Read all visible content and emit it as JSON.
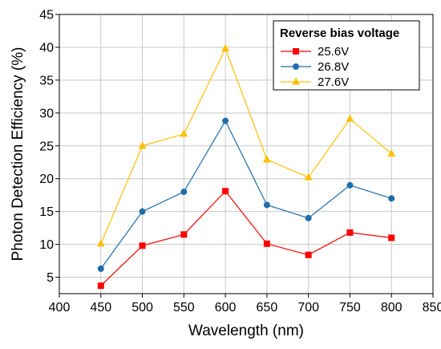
{
  "chart_data": {
    "type": "line",
    "xlabel": "Wavelength (nm)",
    "ylabel": "Photon Detection Efficiency (%)",
    "xlim": [
      400,
      850
    ],
    "ylim": [
      2.5,
      45
    ],
    "x_ticks": [
      400,
      450,
      500,
      550,
      600,
      650,
      700,
      750,
      800,
      850
    ],
    "y_ticks": [
      5,
      10,
      15,
      20,
      25,
      30,
      35,
      40,
      45
    ],
    "grid": true,
    "legend": {
      "title": "Reverse bias voltage",
      "placement": "top-right"
    },
    "x": [
      450,
      500,
      550,
      600,
      650,
      700,
      750,
      800
    ],
    "series": [
      {
        "name": "25.6V",
        "color": "#ff0000",
        "marker": "square",
        "values": [
          3.7,
          9.8,
          11.5,
          18.1,
          10.1,
          8.4,
          11.8,
          11.0
        ]
      },
      {
        "name": "26.8V",
        "color": "#1f6ea8",
        "marker": "circle",
        "values": [
          6.3,
          15.0,
          18.0,
          28.8,
          16.0,
          14.0,
          19.0,
          17.0
        ]
      },
      {
        "name": "27.6V",
        "color": "#ffc000",
        "marker": "triangle",
        "values": [
          10.1,
          25.0,
          26.8,
          39.8,
          22.9,
          20.2,
          29.1,
          23.8
        ]
      }
    ]
  }
}
